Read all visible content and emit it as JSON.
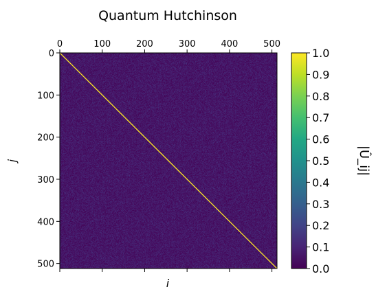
{
  "chart_data": {
    "type": "heatmap",
    "title": "Quantum Hutchinson",
    "xlabel": "i",
    "ylabel": "j",
    "colorbar_label": "|Û_ij|",
    "colormap": "viridis",
    "matrix_size": 512,
    "xlim": [
      0,
      512
    ],
    "ylim": [
      512,
      0
    ],
    "x_axis_position": "top",
    "x_ticks": [
      0,
      100,
      200,
      300,
      400,
      500
    ],
    "y_ticks": [
      0,
      100,
      200,
      300,
      400,
      500
    ],
    "x_tick_labels": [
      "0",
      "100",
      "200",
      "300",
      "400",
      "500"
    ],
    "y_tick_labels": [
      "0",
      "100",
      "200",
      "300",
      "400",
      "500"
    ],
    "clim": [
      0.0,
      1.0
    ],
    "colorbar_ticks": [
      0.0,
      0.1,
      0.2,
      0.3,
      0.4,
      0.5,
      0.6,
      0.7,
      0.8,
      0.9,
      1.0
    ],
    "colorbar_tick_labels": [
      "0.0",
      "0.1",
      "0.2",
      "0.3",
      "0.4",
      "0.5",
      "0.6",
      "0.7",
      "0.8",
      "0.9",
      "1.0"
    ],
    "diagonal_value": 1.0,
    "off_diagonal_typical_range": [
      0.0,
      0.15
    ],
    "grid": false
  }
}
